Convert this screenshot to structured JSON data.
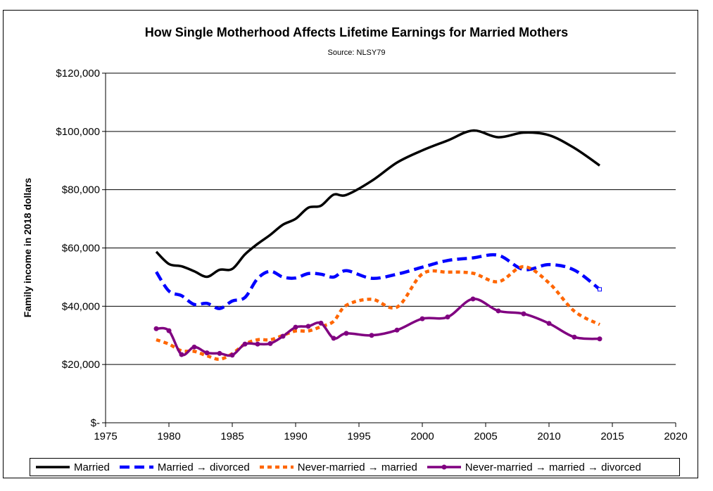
{
  "chart_data": {
    "type": "line",
    "title": "How Single Motherhood Affects Lifetime Earnings for Married Mothers",
    "subtitle": "Source: NLSY79",
    "xlabel": "",
    "ylabel": "Family income in 2018 dollars",
    "xlim": [
      1975,
      2020
    ],
    "ylim": [
      0,
      120000
    ],
    "x_ticks": [
      "1975",
      "1980",
      "1985",
      "1990",
      "1995",
      "2000",
      "2005",
      "2010",
      "2015",
      "2020"
    ],
    "x_tick_values": [
      1975,
      1980,
      1985,
      1990,
      1995,
      2000,
      2005,
      2010,
      2015,
      2020
    ],
    "y_ticks": [
      "$-",
      "$20,000",
      "$40,000",
      "$60,000",
      "$80,000",
      "$100,000",
      "$120,000"
    ],
    "y_tick_values": [
      0,
      20000,
      40000,
      60000,
      80000,
      100000,
      120000
    ],
    "grid": "horizontal",
    "legend_position": "bottom",
    "x": [
      1979,
      1980,
      1981,
      1982,
      1983,
      1984,
      1985,
      1986,
      1987,
      1988,
      1989,
      1990,
      1991,
      1992,
      1993,
      1994,
      1996,
      1998,
      2000,
      2002,
      2004,
      2006,
      2008,
      2010,
      2012,
      2014
    ],
    "series": [
      {
        "name": "Married",
        "color": "#000000",
        "style": "solid",
        "values": [
          58700,
          54500,
          53700,
          52000,
          50100,
          52500,
          52800,
          57800,
          61400,
          64500,
          68000,
          70000,
          73800,
          74500,
          78300,
          78200,
          83000,
          89300,
          93500,
          96900,
          100300,
          98000,
          99600,
          98700,
          94300,
          88300
        ]
      },
      {
        "name": "Married → divorced",
        "color": "#0000ff",
        "style": "dashed",
        "values": [
          51800,
          45200,
          43600,
          40600,
          41000,
          39200,
          41800,
          43000,
          49500,
          52000,
          50000,
          49700,
          51200,
          51000,
          50000,
          52200,
          49600,
          51000,
          53400,
          55700,
          56600,
          57500,
          52600,
          54300,
          52400,
          45800
        ]
      },
      {
        "name": "Never-married → married",
        "color": "#ff6600",
        "style": "dotted",
        "values": [
          28500,
          27000,
          24700,
          24500,
          23000,
          21800,
          23700,
          27000,
          28500,
          28500,
          30000,
          31500,
          31500,
          33000,
          34800,
          40300,
          42400,
          39700,
          51100,
          51700,
          51300,
          48400,
          53600,
          48000,
          38300,
          33700
        ]
      },
      {
        "name": "Never-married → married → divorced",
        "color": "#800080",
        "style": "solid-marker",
        "values": [
          32300,
          31600,
          23400,
          26000,
          24000,
          23800,
          23200,
          27000,
          27000,
          27200,
          29700,
          32800,
          33100,
          34200,
          29000,
          30700,
          30000,
          31800,
          35700,
          36300,
          42500,
          38400,
          37400,
          34100,
          29400,
          28800
        ]
      }
    ]
  }
}
